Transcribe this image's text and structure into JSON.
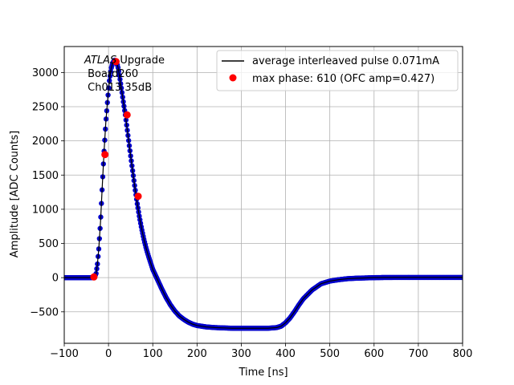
{
  "chart_data": {
    "type": "scatter",
    "xlabel": "Time [ns]",
    "ylabel": "Amplitude [ADC Counts]",
    "xlim": [
      -100,
      800
    ],
    "ylim": [
      -960,
      3380
    ],
    "xticks": [
      -100,
      0,
      100,
      200,
      300,
      400,
      500,
      600,
      700,
      800
    ],
    "xtick_labels": [
      "−100",
      "0",
      "100",
      "200",
      "300",
      "400",
      "500",
      "600",
      "700",
      "800"
    ],
    "yticks": [
      -500,
      0,
      500,
      1000,
      1500,
      2000,
      2500,
      3000
    ],
    "ytick_labels": [
      "−500",
      "0",
      "500",
      "1000",
      "1500",
      "2000",
      "2500",
      "3000"
    ],
    "grid": true,
    "legend_position": "top-right",
    "annotation": {
      "italic": "ATLAS",
      "rest": " Upgrade",
      "line2": " Board260",
      "line3": " Ch013 35dB"
    },
    "series": [
      {
        "name": "average interleaved pulse 0.071mA",
        "marker": "line",
        "color": "#000000",
        "x": [
          -100,
          -60,
          -40,
          -32,
          -28,
          -25,
          -22,
          -18,
          -14,
          -10,
          -6,
          -2,
          2,
          6,
          10,
          14,
          18,
          22,
          26,
          30,
          34,
          38,
          42,
          46,
          50,
          55,
          60,
          65,
          70,
          75,
          80,
          85,
          90,
          95,
          100,
          110,
          120,
          130,
          140,
          150,
          160,
          170,
          180,
          190,
          200,
          220,
          240,
          260,
          280,
          300,
          320,
          340,
          360,
          380,
          390,
          400,
          410,
          420,
          430,
          440,
          460,
          480,
          500,
          520,
          540,
          560,
          580,
          600,
          620,
          650,
          700,
          750,
          800
        ],
        "y": [
          0,
          0,
          0,
          2,
          60,
          200,
          420,
          820,
          1350,
          1850,
          2280,
          2600,
          2880,
          3060,
          3150,
          3180,
          3160,
          3060,
          2900,
          2730,
          2550,
          2380,
          2180,
          1980,
          1780,
          1540,
          1300,
          1080,
          880,
          710,
          560,
          430,
          320,
          220,
          120,
          -20,
          -160,
          -290,
          -400,
          -490,
          -560,
          -610,
          -650,
          -680,
          -700,
          -720,
          -730,
          -735,
          -740,
          -740,
          -740,
          -740,
          -740,
          -730,
          -710,
          -660,
          -590,
          -500,
          -400,
          -310,
          -180,
          -90,
          -50,
          -30,
          -15,
          -8,
          -4,
          0,
          2,
          3,
          3,
          3,
          3
        ]
      },
      {
        "name": "",
        "marker": "dot",
        "color": "#0000cc",
        "x": [
          -100,
          -60,
          -40,
          -32,
          -28,
          -25,
          -22,
          -18,
          -14,
          -10,
          -6,
          -2,
          2,
          6,
          10,
          14,
          18,
          22,
          26,
          30,
          34,
          38,
          42,
          46,
          50,
          55,
          60,
          65,
          70,
          75,
          80,
          85,
          90,
          95,
          100,
          110,
          120,
          130,
          140,
          150,
          160,
          170,
          180,
          190,
          200,
          220,
          240,
          260,
          280,
          300,
          320,
          340,
          360,
          380,
          390,
          400,
          410,
          420,
          430,
          440,
          460,
          480,
          500,
          520,
          540,
          560,
          580,
          600,
          620,
          650,
          700,
          750,
          800
        ],
        "y": [
          0,
          0,
          0,
          2,
          60,
          200,
          420,
          820,
          1350,
          1850,
          2280,
          2600,
          2880,
          3060,
          3150,
          3180,
          3160,
          3060,
          2900,
          2730,
          2550,
          2380,
          2180,
          1980,
          1780,
          1540,
          1300,
          1080,
          880,
          710,
          560,
          430,
          320,
          220,
          120,
          -20,
          -160,
          -290,
          -400,
          -490,
          -560,
          -610,
          -650,
          -680,
          -700,
          -720,
          -730,
          -735,
          -740,
          -740,
          -740,
          -740,
          -740,
          -730,
          -710,
          -660,
          -590,
          -500,
          -400,
          -310,
          -180,
          -90,
          -50,
          -30,
          -15,
          -8,
          -4,
          0,
          2,
          3,
          3,
          3,
          3
        ]
      },
      {
        "name": "max phase: 610 (OFC amp=0.427)",
        "marker": "circle",
        "color": "#ff0000",
        "x": [
          -33,
          -8,
          17,
          42,
          67
        ],
        "y": [
          10,
          1800,
          3160,
          2380,
          1190
        ]
      }
    ]
  }
}
